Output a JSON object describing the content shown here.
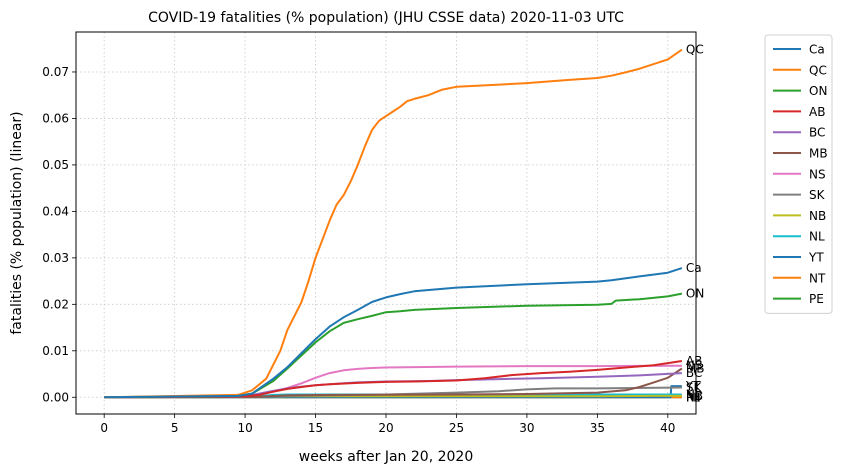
{
  "chart_data": {
    "type": "line",
    "title": "COVID-19 fatalities (% population) (JHU CSSE data) 2020-11-03 UTC",
    "xlabel": "weeks after Jan 20, 2020",
    "ylabel": "fatalities (% population) (linear)",
    "xlim": [
      -2,
      42
    ],
    "ylim": [
      -0.0036,
      0.0786
    ],
    "xticks": [
      0,
      5,
      10,
      15,
      20,
      25,
      30,
      35,
      40
    ],
    "yticks": [
      0.0,
      0.01,
      0.02,
      0.03,
      0.04,
      0.05,
      0.06,
      0.07
    ],
    "ytick_labels": [
      "0.00",
      "0.01",
      "0.02",
      "0.03",
      "0.04",
      "0.05",
      "0.06",
      "0.07"
    ],
    "grid": true,
    "legend_position": "outside-right",
    "series": [
      {
        "name": "Ca",
        "color": "#1f77b4",
        "end_label": "Ca",
        "points": [
          [
            0,
            0
          ],
          [
            9.5,
            0.0003
          ],
          [
            10.5,
            0.0008
          ],
          [
            12,
            0.004
          ],
          [
            13,
            0.0065
          ],
          [
            14,
            0.0095
          ],
          [
            15,
            0.0125
          ],
          [
            16,
            0.0152
          ],
          [
            17,
            0.0172
          ],
          [
            18,
            0.0188
          ],
          [
            19,
            0.0205
          ],
          [
            20,
            0.0215
          ],
          [
            21,
            0.0222
          ],
          [
            22,
            0.0228
          ],
          [
            25,
            0.0236
          ],
          [
            30,
            0.0243
          ],
          [
            35,
            0.0249
          ],
          [
            36,
            0.0252
          ],
          [
            38,
            0.026
          ],
          [
            40,
            0.0268
          ],
          [
            41,
            0.0278
          ]
        ]
      },
      {
        "name": "QC",
        "color": "#ff7f0e",
        "end_label": "QC",
        "points": [
          [
            0,
            0
          ],
          [
            9.5,
            0.0005
          ],
          [
            10.5,
            0.0015
          ],
          [
            11.5,
            0.004
          ],
          [
            12,
            0.007
          ],
          [
            12.5,
            0.01
          ],
          [
            13,
            0.0145
          ],
          [
            14,
            0.0205
          ],
          [
            14.5,
            0.025
          ],
          [
            15,
            0.03
          ],
          [
            15.5,
            0.034
          ],
          [
            16,
            0.038
          ],
          [
            16.5,
            0.0415
          ],
          [
            17,
            0.0435
          ],
          [
            17.5,
            0.0465
          ],
          [
            18,
            0.05
          ],
          [
            18.5,
            0.054
          ],
          [
            19,
            0.0575
          ],
          [
            19.5,
            0.0595
          ],
          [
            20,
            0.0605
          ],
          [
            20.5,
            0.0615
          ],
          [
            21,
            0.0625
          ],
          [
            21.5,
            0.0637
          ],
          [
            22,
            0.0642
          ],
          [
            23,
            0.065
          ],
          [
            24,
            0.0662
          ],
          [
            25,
            0.0668
          ],
          [
            27,
            0.0671
          ],
          [
            30,
            0.0676
          ],
          [
            33,
            0.0683
          ],
          [
            35,
            0.0687
          ],
          [
            36,
            0.0692
          ],
          [
            37,
            0.0699
          ],
          [
            38,
            0.0707
          ],
          [
            39,
            0.0717
          ],
          [
            40,
            0.0727
          ],
          [
            41,
            0.0748
          ]
        ]
      },
      {
        "name": "ON",
        "color": "#2ca02c",
        "end_label": "ON",
        "points": [
          [
            0,
            0
          ],
          [
            9.5,
            0.0003
          ],
          [
            10.5,
            0.0008
          ],
          [
            12,
            0.0035
          ],
          [
            13,
            0.0062
          ],
          [
            14,
            0.009
          ],
          [
            15,
            0.0118
          ],
          [
            16,
            0.0142
          ],
          [
            17,
            0.016
          ],
          [
            18,
            0.0168
          ],
          [
            19,
            0.0175
          ],
          [
            20,
            0.0183
          ],
          [
            21,
            0.0185
          ],
          [
            22,
            0.0188
          ],
          [
            25,
            0.0192
          ],
          [
            30,
            0.0197
          ],
          [
            35,
            0.0199
          ],
          [
            36,
            0.0201
          ],
          [
            36.3,
            0.0208
          ],
          [
            38,
            0.0211
          ],
          [
            40,
            0.0217
          ],
          [
            41,
            0.0223
          ]
        ]
      },
      {
        "name": "AB",
        "color": "#d62728",
        "end_label": "AB",
        "points": [
          [
            0,
            0
          ],
          [
            10,
            0.0002
          ],
          [
            11,
            0.0005
          ],
          [
            12,
            0.0012
          ],
          [
            13,
            0.0018
          ],
          [
            14,
            0.0022
          ],
          [
            15,
            0.0026
          ],
          [
            16,
            0.0028
          ],
          [
            18,
            0.0031
          ],
          [
            20,
            0.0033
          ],
          [
            22,
            0.0034
          ],
          [
            25,
            0.0036
          ],
          [
            27,
            0.0041
          ],
          [
            29,
            0.0048
          ],
          [
            31,
            0.0052
          ],
          [
            33,
            0.0055
          ],
          [
            35,
            0.0059
          ],
          [
            37,
            0.0064
          ],
          [
            39,
            0.0069
          ],
          [
            41,
            0.0078
          ]
        ]
      },
      {
        "name": "BC",
        "color": "#9467bd",
        "end_label": "BC",
        "points": [
          [
            0,
            0
          ],
          [
            10,
            0.0002
          ],
          [
            11,
            0.0008
          ],
          [
            12,
            0.0014
          ],
          [
            13,
            0.0019
          ],
          [
            14,
            0.0023
          ],
          [
            15,
            0.0026
          ],
          [
            16,
            0.0028
          ],
          [
            17,
            0.003
          ],
          [
            18,
            0.0032
          ],
          [
            20,
            0.0034
          ],
          [
            23,
            0.0035
          ],
          [
            25,
            0.0037
          ],
          [
            28,
            0.0039
          ],
          [
            31,
            0.0041
          ],
          [
            35,
            0.0044
          ],
          [
            38,
            0.0047
          ],
          [
            41,
            0.0052
          ]
        ]
      },
      {
        "name": "MB",
        "color": "#8c564b",
        "end_label": "MB",
        "points": [
          [
            0,
            0
          ],
          [
            11,
            0.0001
          ],
          [
            13,
            0.0004
          ],
          [
            16,
            0.0005
          ],
          [
            25,
            0.0006
          ],
          [
            30,
            0.0007
          ],
          [
            35,
            0.001
          ],
          [
            37,
            0.0015
          ],
          [
            38,
            0.0022
          ],
          [
            39,
            0.0032
          ],
          [
            40,
            0.0042
          ],
          [
            41,
            0.0062
          ]
        ]
      },
      {
        "name": "NS",
        "color": "#e377c2",
        "end_label": "NS",
        "points": [
          [
            0,
            0
          ],
          [
            10,
            0.0002
          ],
          [
            11,
            0.0006
          ],
          [
            12,
            0.0012
          ],
          [
            13,
            0.002
          ],
          [
            14,
            0.003
          ],
          [
            15,
            0.0042
          ],
          [
            16,
            0.0052
          ],
          [
            17,
            0.0058
          ],
          [
            18,
            0.0061
          ],
          [
            19,
            0.0063
          ],
          [
            20,
            0.0064
          ],
          [
            25,
            0.0066
          ],
          [
            30,
            0.0067
          ],
          [
            35,
            0.0067
          ],
          [
            41,
            0.0068
          ]
        ]
      },
      {
        "name": "SK",
        "color": "#7f7f7f",
        "end_label": "SK",
        "points": [
          [
            0,
            0
          ],
          [
            11,
            0.0001
          ],
          [
            13,
            0.0003
          ],
          [
            16,
            0.0004
          ],
          [
            20,
            0.0006
          ],
          [
            25,
            0.001
          ],
          [
            28,
            0.0013
          ],
          [
            30,
            0.0017
          ],
          [
            32,
            0.0019
          ],
          [
            35,
            0.0019
          ],
          [
            41,
            0.0021
          ]
        ]
      },
      {
        "name": "NB",
        "color": "#bcbd22",
        "end_label": "NB",
        "points": [
          [
            0,
            0
          ],
          [
            11,
            0.0001
          ],
          [
            13,
            0.0002
          ],
          [
            20,
            0.0002
          ],
          [
            35,
            0.0002
          ],
          [
            39,
            0.0003
          ],
          [
            41,
            0.0003
          ]
        ]
      },
      {
        "name": "NL",
        "color": "#17becf",
        "end_label": "NL",
        "points": [
          [
            0,
            0
          ],
          [
            11,
            0.0002
          ],
          [
            12,
            0.0005
          ],
          [
            13,
            0.0006
          ],
          [
            41,
            0.0006
          ]
        ]
      },
      {
        "name": "YT",
        "color": "#1f77b4",
        "end_label": "YT",
        "points": [
          [
            0,
            0
          ],
          [
            40.2,
            0
          ],
          [
            40.25,
            0.0024
          ],
          [
            41,
            0.0024
          ]
        ]
      },
      {
        "name": "NT",
        "color": "#ff7f0e",
        "end_label": "NT",
        "points": [
          [
            0,
            0
          ],
          [
            41,
            0
          ]
        ]
      },
      {
        "name": "PE",
        "color": "#2ca02c",
        "end_label": "PE",
        "points": [
          [
            0,
            0
          ],
          [
            41,
            0
          ]
        ]
      }
    ]
  }
}
